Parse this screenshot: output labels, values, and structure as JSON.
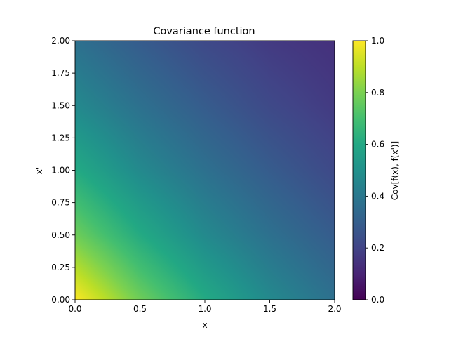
{
  "chart_data": {
    "type": "heatmap",
    "title": "Covariance function",
    "xlabel": "x",
    "ylabel": "x'",
    "xlim": [
      0,
      2
    ],
    "ylim": [
      0,
      2
    ],
    "xticks": [
      "0.0",
      "0.5",
      "1.0",
      "1.5",
      "2.0"
    ],
    "yticks": [
      "0.00",
      "0.25",
      "0.50",
      "0.75",
      "1.00",
      "1.25",
      "1.50",
      "1.75",
      "2.00"
    ],
    "colormap": "viridis",
    "grid": false,
    "z_description": "z = exp(-(x + x') / 2)",
    "grid_values": {
      "x": [
        0,
        0.5,
        1,
        1.5,
        2
      ],
      "y": [
        0,
        0.5,
        1,
        1.5,
        2
      ],
      "z": [
        [
          1.0,
          0.78,
          0.61,
          0.47,
          0.37
        ],
        [
          0.78,
          0.61,
          0.47,
          0.37,
          0.29
        ],
        [
          0.61,
          0.47,
          0.37,
          0.29,
          0.22
        ],
        [
          0.47,
          0.37,
          0.29,
          0.22,
          0.17
        ],
        [
          0.37,
          0.29,
          0.22,
          0.17,
          0.14
        ]
      ]
    },
    "colorbar": {
      "label": "Cov[f(x), f(x')]",
      "range": [
        0,
        1
      ],
      "ticks": [
        "0.0",
        "0.2",
        "0.4",
        "0.6",
        "0.8",
        "1.0"
      ]
    }
  }
}
